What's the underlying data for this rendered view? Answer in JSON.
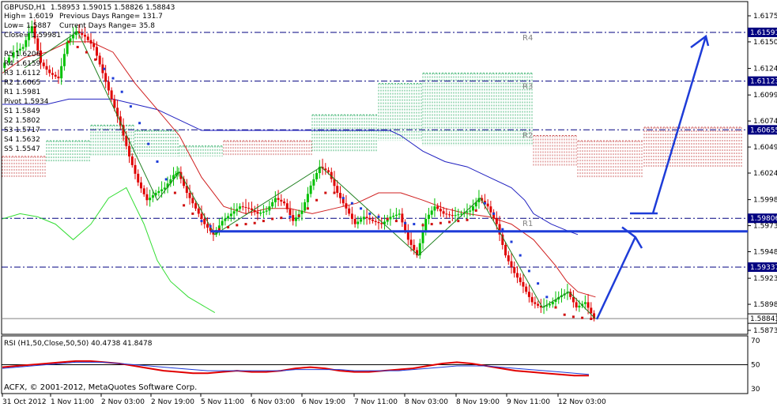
{
  "header": {
    "symbol_line": "GBPUSD,H1  1.58953 1.59015 1.58826 1.58843",
    "high": "High= 1.6019",
    "low": "Low= 1.5887",
    "close": "Close= 1.59981",
    "prev_range": "Previous Days Range= 131.7",
    "curr_range": "Current Days Range= 35.8"
  },
  "pivots": {
    "r5": "R5 1.6206",
    "r4": "R4 1.6159",
    "r3": "R3 1.6112",
    "r2": "R2 1.6065",
    "r1": "R1 1.5981",
    "pivot": "Pivot 1.5934",
    "s1": "S1 1.5849",
    "s2": "S2 1.5802",
    "s3": "S3 1.5717",
    "s4": "S4 1.5632",
    "s5": "S5 1.5547"
  },
  "rsi_header": "RSI (H1,50,Close,50,50) 40.4738 41.8478",
  "copyright": "ACFX, © 2001-2012, MetaQuotes Software Corp.",
  "colors": {
    "pivot_lines": "#000080",
    "price_tag_bg": "#000080",
    "candle_bull": "#00c000",
    "candle_bear": "#e00000",
    "ichimoku_green": "#3cb371",
    "ichimoku_red": "#cd5c5c",
    "arrows": "#1e3cd8",
    "rsi_line": "#e00000",
    "rsi_ma": "#1e3cd8",
    "chikou": "#33dd33"
  },
  "chart_data": [
    {
      "type": "line",
      "title": "GBPUSD,H1",
      "ylim": [
        1.5873,
        1.6175
      ],
      "y_ticks": [
        "1.61750",
        "1.61500",
        "1.61245",
        "1.60990",
        "1.60740",
        "1.60490",
        "1.60240",
        "1.59985",
        "1.59735",
        "1.59485",
        "1.59230",
        "1.58980",
        "1.58730"
      ],
      "x_ticks": [
        "31 Oct 2012",
        "1 Nov 11:00",
        "2 Nov 03:00",
        "2 Nov 19:00",
        "5 Nov 11:00",
        "6 Nov 03:00",
        "6 Nov 19:00",
        "7 Nov 11:00",
        "8 Nov 03:00",
        "8 Nov 19:00",
        "9 Nov 11:00",
        "12 Nov 03:00"
      ],
      "horizontal_levels": [
        {
          "name": "R4",
          "value": 1.61591,
          "label": "1.61591"
        },
        {
          "name": "R3",
          "value": 1.61123,
          "label": "1.61123"
        },
        {
          "name": "R2",
          "value": 1.60655,
          "label": "1.60655"
        },
        {
          "name": "R1",
          "value": 1.59806,
          "label": "1.59806"
        },
        {
          "name": "Pivot",
          "value": 1.59337,
          "label": "1.59337"
        }
      ],
      "current_price": {
        "value": 1.58843,
        "label": "1.58843"
      },
      "close_path": [
        [
          0,
          1.6125
        ],
        [
          6,
          1.614
        ],
        [
          10,
          1.6145
        ],
        [
          14,
          1.6165
        ],
        [
          18,
          1.613
        ],
        [
          22,
          1.612
        ],
        [
          26,
          1.6115
        ],
        [
          30,
          1.615
        ],
        [
          34,
          1.616
        ],
        [
          38,
          1.6155
        ],
        [
          42,
          1.6145
        ],
        [
          46,
          1.612
        ],
        [
          50,
          1.6095
        ],
        [
          54,
          1.607
        ],
        [
          58,
          1.604
        ],
        [
          62,
          1.6015
        ],
        [
          66,
          1.5998
        ],
        [
          70,
          1.6005
        ],
        [
          74,
          1.601
        ],
        [
          78,
          1.6022
        ],
        [
          80,
          1.6025
        ],
        [
          84,
          1.6005
        ],
        [
          88,
          1.599
        ],
        [
          92,
          1.5975
        ],
        [
          96,
          1.5965
        ],
        [
          100,
          1.5978
        ],
        [
          104,
          1.5985
        ],
        [
          108,
          1.5992
        ],
        [
          112,
          1.599
        ],
        [
          116,
          1.5985
        ],
        [
          120,
          1.5988
        ],
        [
          124,
          1.6
        ],
        [
          128,
          1.5995
        ],
        [
          132,
          1.5978
        ],
        [
          136,
          1.5988
        ],
        [
          140,
          1.6012
        ],
        [
          144,
          1.603
        ],
        [
          148,
          1.6025
        ],
        [
          152,
          1.6005
        ],
        [
          156,
          1.599
        ],
        [
          160,
          1.5975
        ],
        [
          164,
          1.5982
        ],
        [
          168,
          1.5978
        ],
        [
          172,
          1.5975
        ],
        [
          176,
          1.5982
        ],
        [
          180,
          1.5985
        ],
        [
          184,
          1.596
        ],
        [
          188,
          1.5945
        ],
        [
          192,
          1.598
        ],
        [
          196,
          1.5992
        ],
        [
          200,
          1.5985
        ],
        [
          204,
          1.5983
        ],
        [
          208,
          1.5985
        ],
        [
          212,
          1.5988
        ],
        [
          216,
          1.6
        ],
        [
          220,
          1.5992
        ],
        [
          224,
          1.5975
        ],
        [
          228,
          1.5945
        ],
        [
          232,
          1.5928
        ],
        [
          236,
          1.5915
        ],
        [
          240,
          1.59
        ],
        [
          244,
          1.5895
        ],
        [
          248,
          1.5898
        ],
        [
          252,
          1.5905
        ],
        [
          256,
          1.591
        ],
        [
          260,
          1.5895
        ],
        [
          264,
          1.59
        ],
        [
          268,
          1.5884
        ]
      ],
      "fast_line": [
        [
          0,
          1.612
        ],
        [
          10,
          1.6135
        ],
        [
          20,
          1.614
        ],
        [
          30,
          1.615
        ],
        [
          40,
          1.615
        ],
        [
          50,
          1.614
        ],
        [
          60,
          1.611
        ],
        [
          70,
          1.6085
        ],
        [
          80,
          1.606
        ],
        [
          90,
          1.602
        ],
        [
          100,
          1.5992
        ],
        [
          110,
          1.5985
        ],
        [
          120,
          1.599
        ],
        [
          130,
          1.599
        ],
        [
          140,
          1.5985
        ],
        [
          150,
          1.599
        ],
        [
          160,
          1.5995
        ],
        [
          170,
          1.6005
        ],
        [
          180,
          1.6005
        ],
        [
          190,
          1.5998
        ],
        [
          200,
          1.599
        ],
        [
          210,
          1.5985
        ],
        [
          220,
          1.5982
        ],
        [
          230,
          1.5975
        ],
        [
          240,
          1.596
        ],
        [
          250,
          1.5935
        ],
        [
          255,
          1.592
        ],
        [
          260,
          1.591
        ],
        [
          268,
          1.5905
        ]
      ],
      "slow_line": [
        [
          0,
          1.609
        ],
        [
          20,
          1.609
        ],
        [
          30,
          1.6095
        ],
        [
          50,
          1.6095
        ],
        [
          60,
          1.609
        ],
        [
          70,
          1.6085
        ],
        [
          80,
          1.6075
        ],
        [
          90,
          1.6065
        ],
        [
          100,
          1.6065
        ],
        [
          120,
          1.6065
        ],
        [
          150,
          1.6065
        ],
        [
          175,
          1.6065
        ],
        [
          180,
          1.606
        ],
        [
          190,
          1.6045
        ],
        [
          200,
          1.6035
        ],
        [
          210,
          1.603
        ],
        [
          220,
          1.602
        ],
        [
          230,
          1.601
        ],
        [
          236,
          1.5998
        ],
        [
          240,
          1.5985
        ],
        [
          248,
          1.5975
        ],
        [
          256,
          1.5968
        ],
        [
          260,
          1.5965
        ]
      ],
      "parabolic_sar": [
        [
          30,
          1.615
        ],
        [
          34,
          1.6145
        ],
        [
          38,
          1.614
        ],
        [
          42,
          1.6133
        ],
        [
          46,
          1.6124
        ],
        [
          50,
          1.6115
        ],
        [
          54,
          1.6102
        ],
        [
          58,
          1.6088
        ],
        [
          62,
          1.6072
        ],
        [
          66,
          1.6052
        ],
        [
          70,
          1.6035
        ],
        [
          74,
          1.6018
        ],
        [
          78,
          1.6005
        ],
        [
          82,
          1.5993
        ],
        [
          86,
          1.5985
        ],
        [
          90,
          1.5978
        ],
        [
          94,
          1.5973
        ],
        [
          98,
          1.597
        ],
        [
          102,
          1.5972
        ],
        [
          106,
          1.5974
        ],
        [
          110,
          1.5975
        ],
        [
          114,
          1.5976
        ],
        [
          118,
          1.5978
        ],
        [
          122,
          1.598
        ],
        [
          126,
          1.5981
        ],
        [
          130,
          1.5982
        ],
        [
          134,
          1.5983
        ],
        [
          138,
          1.599
        ],
        [
          142,
          1.5998
        ],
        [
          146,
          1.6005
        ],
        [
          150,
          1.6005
        ],
        [
          154,
          1.6
        ],
        [
          158,
          1.5995
        ],
        [
          162,
          1.599
        ],
        [
          166,
          1.5985
        ],
        [
          170,
          1.5982
        ],
        [
          174,
          1.598
        ],
        [
          178,
          1.5978
        ],
        [
          182,
          1.5976
        ],
        [
          186,
          1.5975
        ],
        [
          190,
          1.5974
        ],
        [
          194,
          1.5975
        ],
        [
          198,
          1.5976
        ],
        [
          202,
          1.5977
        ],
        [
          206,
          1.5978
        ],
        [
          210,
          1.5979
        ],
        [
          214,
          1.5988
        ],
        [
          218,
          1.5995
        ],
        [
          222,
          1.5985
        ],
        [
          226,
          1.597
        ],
        [
          230,
          1.5958
        ],
        [
          234,
          1.5945
        ],
        [
          238,
          1.593
        ],
        [
          242,
          1.5918
        ],
        [
          246,
          1.5905
        ],
        [
          250,
          1.5895
        ],
        [
          254,
          1.5888
        ],
        [
          258,
          1.5886
        ],
        [
          262,
          1.5885
        ],
        [
          266,
          1.5884
        ]
      ],
      "ichimoku_cloud": [
        {
          "x0": 0,
          "x1": 20,
          "top": 1.604,
          "bottom": 1.602,
          "bull": false
        },
        {
          "x0": 20,
          "x1": 40,
          "top": 1.6055,
          "bottom": 1.6035,
          "bull": true
        },
        {
          "x0": 40,
          "x1": 60,
          "top": 1.607,
          "bottom": 1.604,
          "bull": true
        },
        {
          "x0": 60,
          "x1": 80,
          "top": 1.6065,
          "bottom": 1.604,
          "bull": true
        },
        {
          "x0": 80,
          "x1": 100,
          "top": 1.605,
          "bottom": 1.604,
          "bull": true
        },
        {
          "x0": 100,
          "x1": 140,
          "top": 1.6055,
          "bottom": 1.604,
          "bull": false
        },
        {
          "x0": 140,
          "x1": 170,
          "top": 1.608,
          "bottom": 1.6045,
          "bull": true
        },
        {
          "x0": 170,
          "x1": 190,
          "top": 1.611,
          "bottom": 1.6055,
          "bull": true
        },
        {
          "x0": 190,
          "x1": 240,
          "top": 1.612,
          "bottom": 1.605,
          "bull": true
        },
        {
          "x0": 240,
          "x1": 260,
          "top": 1.606,
          "bottom": 1.603,
          "bull": false
        },
        {
          "x0": 260,
          "x1": 290,
          "top": 1.6055,
          "bottom": 1.602,
          "bull": false
        },
        {
          "x0": 290,
          "x1": 334,
          "top": 1.6068,
          "bottom": 1.603,
          "bull": false
        }
      ],
      "chikou_span": [
        [
          0,
          1.598
        ],
        [
          8,
          1.5985
        ],
        [
          16,
          1.5982
        ],
        [
          24,
          1.5975
        ],
        [
          32,
          1.596
        ],
        [
          40,
          1.5975
        ],
        [
          48,
          1.6
        ],
        [
          56,
          1.601
        ],
        [
          64,
          1.5975
        ],
        [
          70,
          1.594
        ],
        [
          76,
          1.592
        ],
        [
          84,
          1.5905
        ],
        [
          92,
          1.5895
        ],
        [
          96,
          1.589
        ]
      ]
    },
    {
      "type": "line",
      "title": "RSI (H1,50,Close,50,50) 40.4738 41.8478",
      "ylim": [
        30,
        70
      ],
      "y_ticks": [
        "70",
        "50",
        "30"
      ],
      "series": [
        {
          "values": [
            48,
            49,
            50,
            51,
            52,
            53,
            53,
            52,
            51,
            49,
            47,
            45,
            44,
            43,
            43,
            44,
            45,
            44,
            44,
            45,
            47,
            48,
            47,
            45,
            44,
            44,
            45,
            46,
            47,
            49,
            51,
            52,
            51,
            49,
            47,
            45,
            44,
            43,
            42,
            41,
            41
          ]
        },
        {
          "values": [
            47,
            48,
            49,
            50,
            51,
            52,
            52,
            52,
            51,
            50,
            49,
            48,
            47,
            46,
            45,
            45,
            45,
            45,
            45,
            45,
            46,
            46,
            46,
            46,
            45,
            45,
            45,
            45,
            46,
            47,
            48,
            49,
            49,
            49,
            48,
            47,
            46,
            45,
            44,
            43,
            42
          ]
        }
      ]
    }
  ]
}
